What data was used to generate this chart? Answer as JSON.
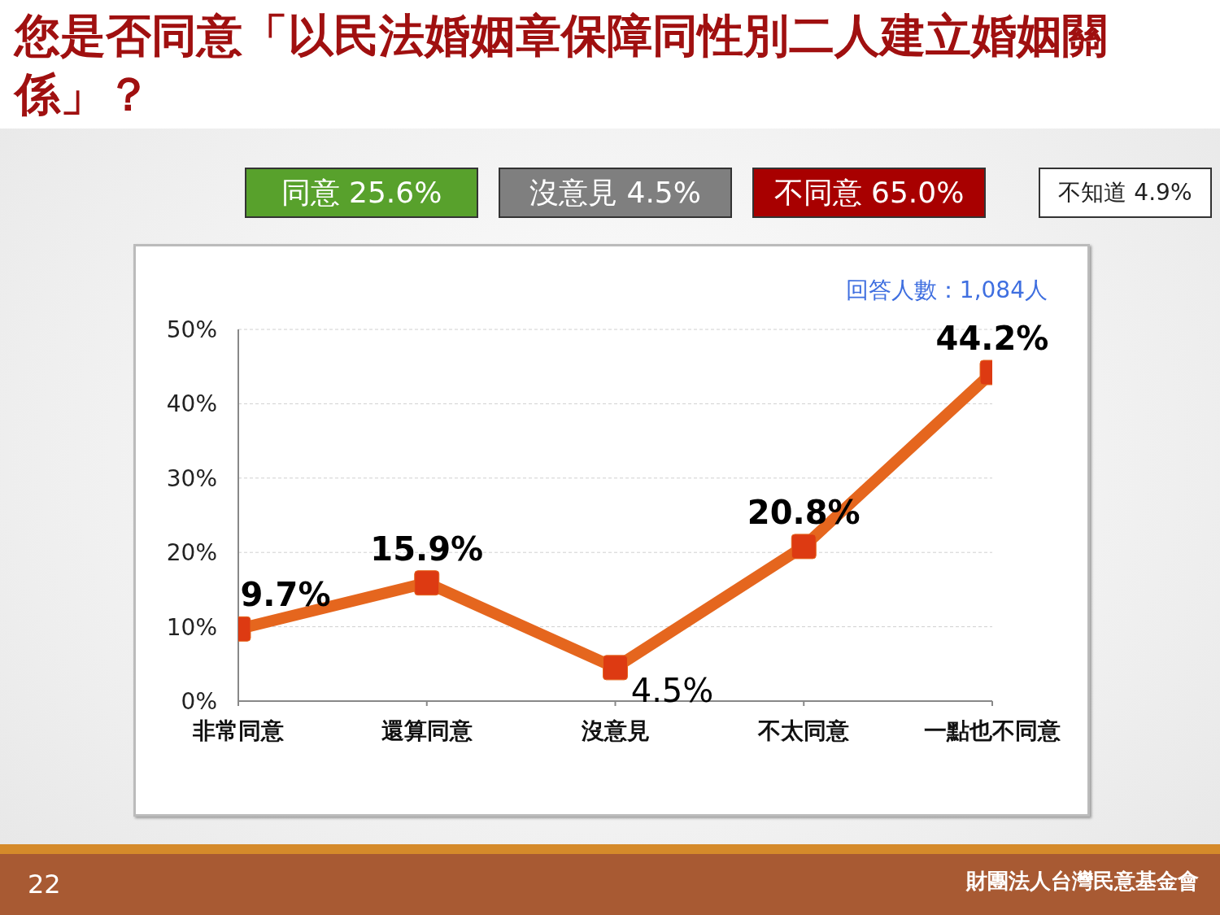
{
  "chart_data": {
    "type": "line",
    "title": "您是否同意「以民法婚姻章保障同性別二人建立婚姻關係」？",
    "categories": [
      "非常同意",
      "還算同意",
      "沒意見",
      "不太同意",
      "一點也不同意"
    ],
    "series": [
      {
        "color": "#e5661e",
        "values": [
          9.7,
          15.9,
          4.5,
          20.8,
          44.2
        ],
        "value_labels": [
          "9.7%",
          "15.9%",
          "4.5%",
          "20.8%",
          "44.2%"
        ]
      }
    ],
    "ylim": [
      0,
      50
    ],
    "yticks": [
      {
        "value": 0,
        "label": "0%"
      },
      {
        "value": 10,
        "label": "10%"
      },
      {
        "value": 20,
        "label": "20%"
      },
      {
        "value": 30,
        "label": "30%"
      },
      {
        "value": 40,
        "label": "40%"
      },
      {
        "value": 50,
        "label": "50%"
      }
    ],
    "grid": "y",
    "marker": "square",
    "line_style": "solid",
    "annotations": [
      "同意 25.6%",
      "沒意見 4.5%",
      "不同意 65.0%",
      "不知道 4.9%",
      "回答人數：1,084人",
      "22",
      "財團法人台灣民意基金會"
    ]
  }
}
